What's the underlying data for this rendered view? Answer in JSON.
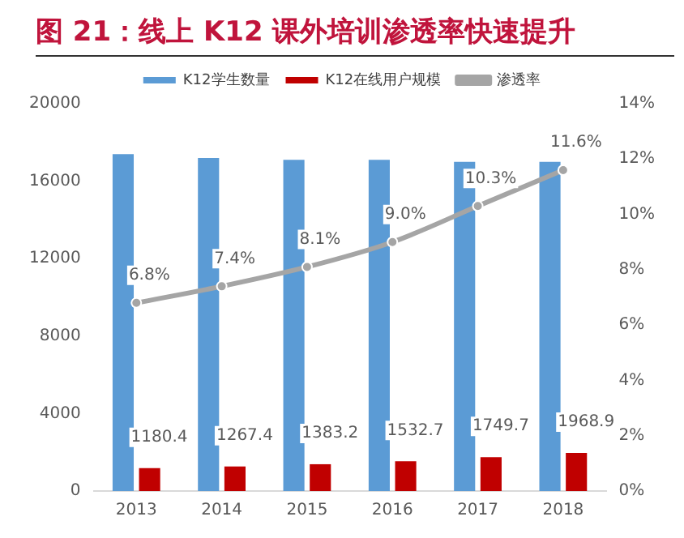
{
  "chart_data": {
    "type": "bar",
    "title": "图 21：线上 K12 课外培训渗透率快速提升",
    "categories": [
      "2013",
      "2014",
      "2015",
      "2016",
      "2017",
      "2018"
    ],
    "series": [
      {
        "name": "K12学生数量",
        "color": "#5b9bd5",
        "values": [
          17400,
          17200,
          17100,
          17100,
          17000,
          17000
        ]
      },
      {
        "name": "K12在线用户规模",
        "color": "#c00000",
        "values": [
          1180.4,
          1267.4,
          1383.2,
          1532.7,
          1749.7,
          1968.9
        ],
        "value_labels": [
          "1180.4",
          "1267.4",
          "1383.2",
          "1532.7",
          "1749.7",
          "1968.9"
        ]
      },
      {
        "name": "渗透率",
        "type": "line",
        "axis": "y2",
        "color": "#a5a5a5",
        "marker": "circle",
        "values": [
          6.8,
          7.4,
          8.1,
          9.0,
          10.3,
          11.6
        ],
        "value_labels": [
          "6.8%",
          "7.4%",
          "8.1%",
          "9.0%",
          "10.3%",
          "11.6%"
        ]
      }
    ],
    "ylim": [
      0,
      20000
    ],
    "yticks": [
      0,
      4000,
      8000,
      12000,
      16000,
      20000
    ],
    "y2lim": [
      0,
      14
    ],
    "y2ticks": [
      {
        "value": 0,
        "label": "0%"
      },
      {
        "value": 2,
        "label": "2%"
      },
      {
        "value": 4,
        "label": "4%"
      },
      {
        "value": 6,
        "label": "6%"
      },
      {
        "value": 8,
        "label": "8%"
      },
      {
        "value": 10,
        "label": "10%"
      },
      {
        "value": 12,
        "label": "12%"
      },
      {
        "value": 14,
        "label": "14%"
      }
    ],
    "legend": "top"
  }
}
